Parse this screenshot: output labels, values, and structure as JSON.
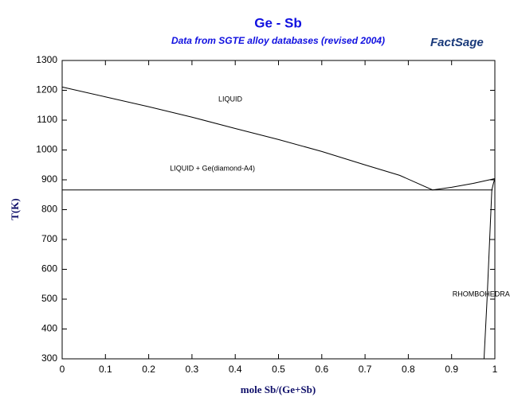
{
  "chart_data": {
    "type": "line",
    "title": "Ge - Sb",
    "subtitle": "Data from SGTE alloy databases (revised 2004)",
    "logo": "FactSage",
    "x_label": "mole Sb/(Ge+Sb)",
    "y_label": "T(K)",
    "xlim": [
      0,
      1
    ],
    "ylim": [
      300,
      1300
    ],
    "xticks": [
      0,
      0.1,
      0.2,
      0.3,
      0.4,
      0.5,
      0.6,
      0.7,
      0.8,
      0.9,
      1
    ],
    "yticks": [
      300,
      400,
      500,
      600,
      700,
      800,
      900,
      1000,
      1100,
      1200,
      1300
    ],
    "series": [
      {
        "color": "#000000",
        "x": [
          0,
          0.1,
          0.2,
          0.3,
          0.4,
          0.5,
          0.6,
          0.7,
          0.78,
          0.856,
          0.9,
          0.95,
          1.0
        ],
        "values": [
          1211,
          1178,
          1145,
          1110,
          1072,
          1035,
          995,
          950,
          915,
          866,
          875,
          888,
          904
        ]
      },
      {
        "color": "#000000",
        "x": [
          0,
          0.995
        ],
        "values": [
          866,
          866
        ]
      },
      {
        "color": "#000000",
        "x": [
          0.975,
          0.982,
          0.988,
          0.993,
          0.997,
          1.0
        ],
        "values": [
          300,
          500,
          700,
          866,
          890,
          904
        ]
      }
    ],
    "annotations": [
      {
        "text": "LIQUID",
        "x": 0.361,
        "y": 1169
      },
      {
        "text": "LIQUID + Ge(diamond-A4)",
        "x": 0.249,
        "y": 937
      },
      {
        "text": "RHOMBOHEDRA",
        "x": 0.902,
        "y": 516
      }
    ]
  }
}
